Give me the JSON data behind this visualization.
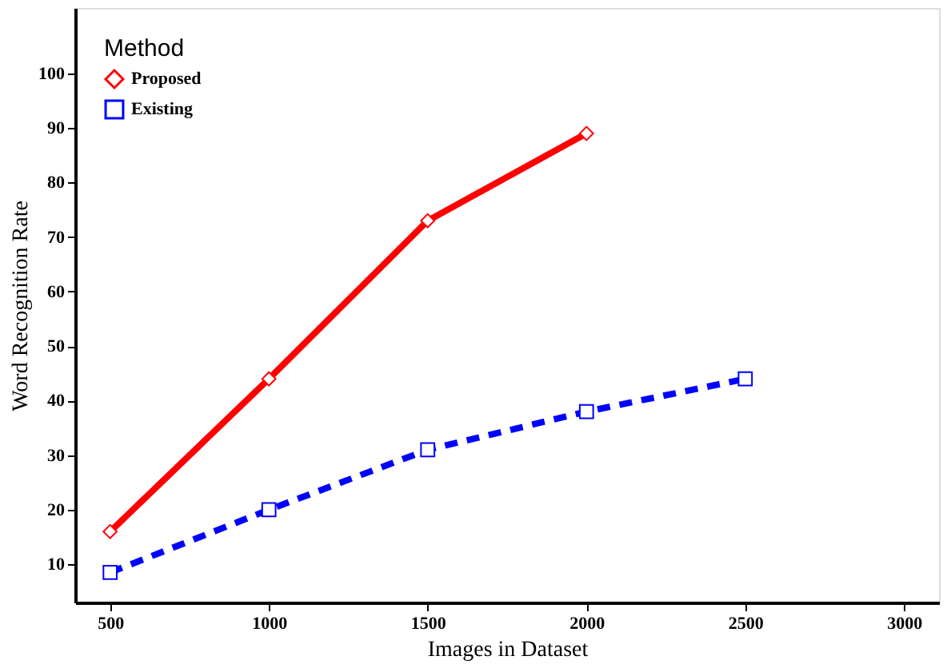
{
  "chart_data": {
    "type": "line",
    "xlabel": "Images in Dataset",
    "ylabel": "Word Recognition Rate",
    "legend_title": "Method",
    "legend": "top left",
    "grid": false,
    "xlim": [
      390,
      3110
    ],
    "xticks": [
      500,
      1000,
      1500,
      2000,
      2500,
      3000
    ],
    "ylim": [
      3,
      112
    ],
    "yticks": [
      10,
      20,
      30,
      40,
      50,
      60,
      70,
      80,
      90,
      100
    ],
    "series": [
      {
        "name": "Proposed",
        "color": "#ff0000",
        "line_style": "solid",
        "marker": "diamond",
        "x": [
          500,
          1000,
          1500,
          2000
        ],
        "values": [
          16,
          44,
          73,
          89
        ]
      },
      {
        "name": "Existing",
        "color": "#0000ff",
        "line_style": "dashed",
        "marker": "square",
        "x": [
          500,
          1000,
          1500,
          2000,
          2500
        ],
        "values": [
          8.5,
          20,
          31,
          38,
          44
        ]
      }
    ]
  }
}
